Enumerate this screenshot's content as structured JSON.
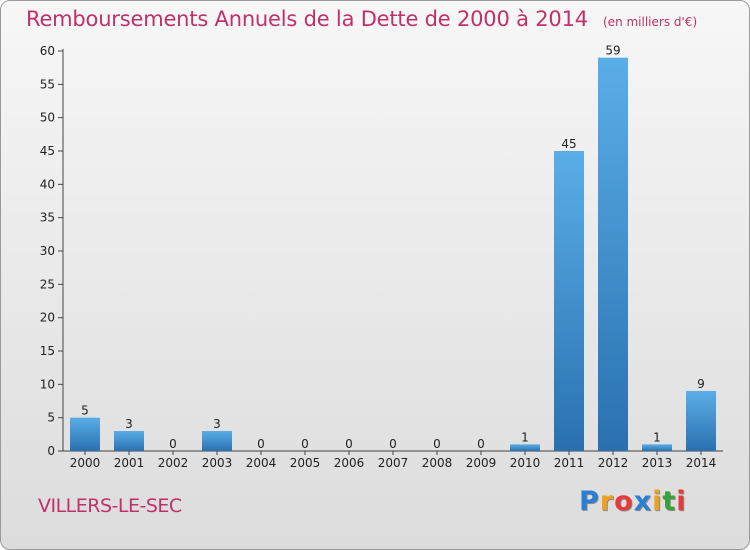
{
  "title": "Remboursements Annuels de la Dette de 2000 à 2014",
  "unit_note": "(en milliers d'€)",
  "commune": "VILLERS-LE-SEC",
  "logo": {
    "letters": [
      "P",
      "r",
      "o",
      "x",
      "i",
      "t",
      "i"
    ],
    "colors": [
      "#2a7fd4",
      "#f0a020",
      "#e83a3a",
      "#2a7fd4",
      "#f0a020",
      "#3aa03a",
      "#e83a3a"
    ]
  },
  "colors": {
    "bar_top": "#5aaee8",
    "bar_bottom": "#2a70b0",
    "title": "#c0306a"
  },
  "chart_data": {
    "type": "bar",
    "categories": [
      "2000",
      "2001",
      "2002",
      "2003",
      "2004",
      "2005",
      "2006",
      "2007",
      "2008",
      "2009",
      "2010",
      "2011",
      "2012",
      "2013",
      "2014"
    ],
    "values": [
      5,
      3,
      0,
      3,
      0,
      0,
      0,
      0,
      0,
      0,
      1,
      45,
      59,
      1,
      9
    ],
    "ylim": [
      0,
      60
    ],
    "yticks": [
      0,
      5,
      10,
      15,
      20,
      25,
      30,
      35,
      40,
      45,
      50,
      55,
      60
    ],
    "grid": false,
    "data_labels": true
  }
}
